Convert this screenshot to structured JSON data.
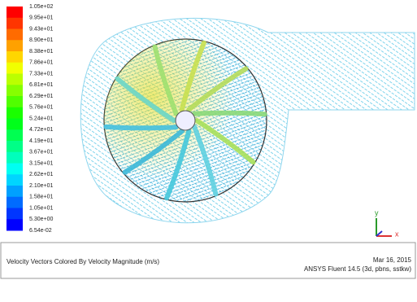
{
  "colorbar": {
    "labels": [
      "1.05e+02",
      "9.95e+01",
      "9.43e+01",
      "8.90e+01",
      "8.38e+01",
      "7.86e+01",
      "7.33e+01",
      "6.81e+01",
      "6.29e+01",
      "5.76e+01",
      "5.24e+01",
      "4.72e+01",
      "4.19e+01",
      "3.67e+01",
      "3.15e+01",
      "2.62e+01",
      "2.10e+01",
      "1.58e+01",
      "1.05e+01",
      "5.30e+00",
      "6.54e-02"
    ],
    "colors": [
      "#ff0000",
      "#ff3500",
      "#ff6b00",
      "#ffa100",
      "#ffd600",
      "#f1ff00",
      "#bbff00",
      "#86ff00",
      "#50ff00",
      "#1aff00",
      "#00ff1b",
      "#00ff51",
      "#00ff87",
      "#00ffbc",
      "#00fff2",
      "#00d5ff",
      "#00a1ff",
      "#006bff",
      "#0036ff",
      "#0000ff"
    ]
  },
  "axes": {
    "y": "y",
    "x": "x"
  },
  "footer": {
    "title": "Velocity Vectors Colored By Velocity Magnitude (m/s)",
    "date": "Mar 16, 2015",
    "software": "ANSYS Fluent 14.5 (3d, pbns, sstkw)"
  }
}
